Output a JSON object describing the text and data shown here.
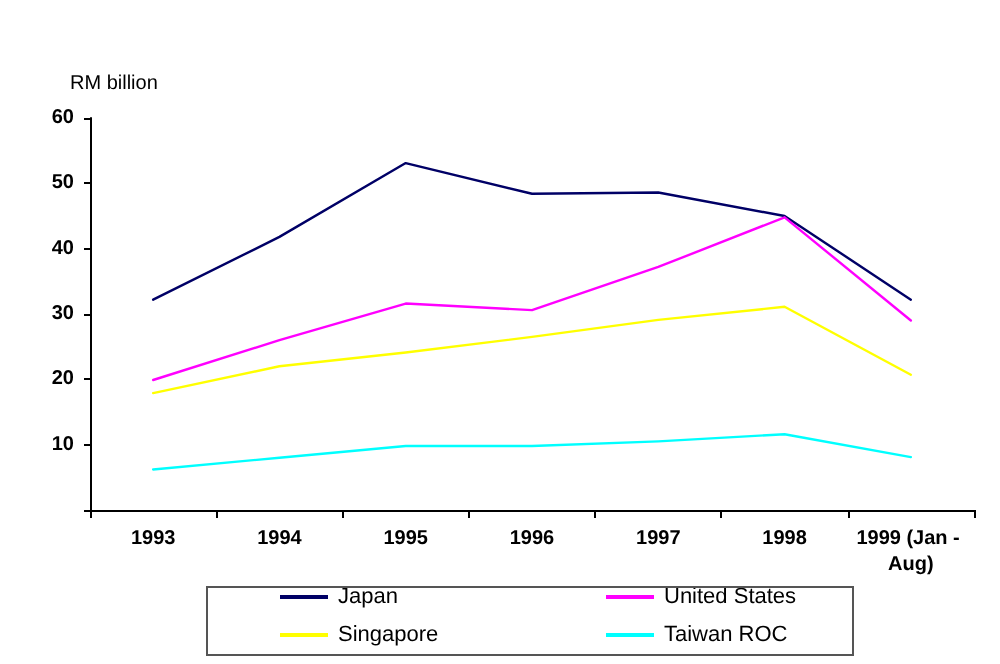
{
  "chart_data": {
    "type": "line",
    "ylabel": "RM billion",
    "categories": [
      "1993",
      "1994",
      "1995",
      "1996",
      "1997",
      "1998",
      "1999 (Jan - Aug)"
    ],
    "ylim": [
      0,
      60
    ],
    "yticks": [
      {
        "value": 0,
        "label": null
      },
      10,
      20,
      30,
      40,
      50,
      60
    ],
    "grid": false,
    "legend": "bottom",
    "marker": "none",
    "series": [
      {
        "name": "Japan",
        "color": "#000066",
        "values": [
          32.2,
          41.8,
          53.1,
          48.4,
          48.6,
          45.0,
          32.2
        ]
      },
      {
        "name": "United States",
        "color": "#ff00ff",
        "values": [
          19.9,
          26.0,
          31.6,
          30.6,
          37.2,
          44.8,
          29.0
        ]
      },
      {
        "name": "Singapore",
        "color": "#ffff00",
        "values": [
          17.9,
          22.0,
          24.1,
          26.5,
          29.1,
          31.1,
          20.7
        ]
      },
      {
        "name": "Taiwan ROC",
        "color": "#00ffff",
        "values": [
          6.2,
          8.0,
          9.8,
          9.8,
          10.5,
          11.6,
          8.1
        ]
      }
    ]
  }
}
